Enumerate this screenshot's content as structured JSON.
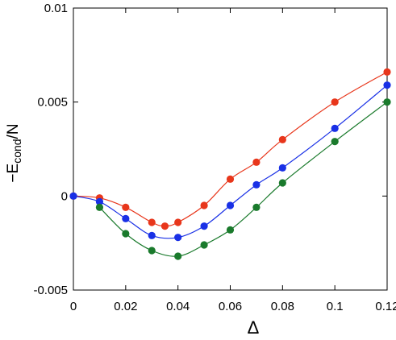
{
  "chart_data": {
    "type": "line",
    "xlabel": "Δ",
    "ylabel_main": "−E",
    "ylabel_sub": "cond",
    "ylabel_tail": "/N",
    "xlim": [
      0,
      0.12
    ],
    "ylim": [
      -0.005,
      0.01
    ],
    "xticks": [
      0,
      0.02,
      0.04,
      0.06,
      0.08,
      0.1,
      0.12
    ],
    "xtick_labels": [
      "0",
      "0.02",
      "0.04",
      "0.06",
      "0.08",
      "0.1",
      "0.12"
    ],
    "yticks": [
      -0.005,
      0,
      0.005,
      0.01
    ],
    "ytick_labels": [
      "-0.005",
      "0",
      "0.005",
      "0.01"
    ],
    "grid": false,
    "series": [
      {
        "color": "#e8361b",
        "x": [
          0,
          0.01,
          0.02,
          0.03,
          0.035,
          0.04,
          0.05,
          0.06,
          0.07,
          0.08,
          0.1,
          0.12
        ],
        "y": [
          0,
          -0.0001,
          -0.0006,
          -0.0014,
          -0.0016,
          -0.0014,
          -0.0005,
          0.0009,
          0.0018,
          0.003,
          0.005,
          0.0066
        ]
      },
      {
        "color": "#1930e6",
        "x": [
          0,
          0.01,
          0.02,
          0.03,
          0.04,
          0.05,
          0.06,
          0.07,
          0.08,
          0.1,
          0.12
        ],
        "y": [
          0,
          -0.0003,
          -0.0012,
          -0.0021,
          -0.0022,
          -0.0016,
          -0.0005,
          0.0006,
          0.0015,
          0.0036,
          0.0059
        ]
      },
      {
        "color": "#1a7a2c",
        "x": [
          0.01,
          0.02,
          0.03,
          0.04,
          0.05,
          0.06,
          0.07,
          0.08,
          0.1,
          0.12
        ],
        "y": [
          -0.0006,
          -0.002,
          -0.0029,
          -0.0032,
          -0.0026,
          -0.0018,
          -0.0006,
          0.0007,
          0.0029,
          0.005
        ]
      }
    ]
  }
}
